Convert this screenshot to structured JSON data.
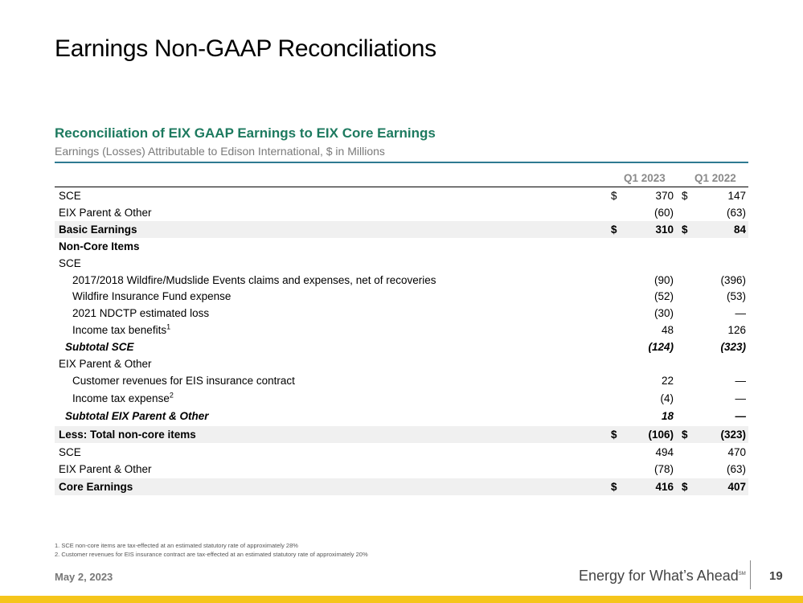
{
  "title": "Earnings Non-GAAP Reconciliations",
  "section": {
    "title": "Reconciliation of EIX GAAP Earnings to EIX Core Earnings",
    "subtitle": "Earnings (Losses) Attributable to Edison International, $ in Millions"
  },
  "columns": [
    "Q1 2023",
    "Q1 2022"
  ],
  "rows": [
    {
      "label": "SCE",
      "d1": "$",
      "v1": "370",
      "d2": "$",
      "v2": "147"
    },
    {
      "label": "EIX Parent & Other",
      "d1": "",
      "v1": "(60)",
      "d2": "",
      "v2": "(63)"
    },
    {
      "label": "Basic Earnings",
      "d1": "$",
      "v1": "310",
      "d2": "$",
      "v2": "84"
    },
    {
      "label": "Non-Core Items",
      "d1": "",
      "v1": "",
      "d2": "",
      "v2": ""
    },
    {
      "label": "SCE",
      "d1": "",
      "v1": "",
      "d2": "",
      "v2": ""
    },
    {
      "label": "2017/2018 Wildfire/Mudslide Events claims and expenses, net of recoveries",
      "d1": "",
      "v1": "(90)",
      "d2": "",
      "v2": "(396)"
    },
    {
      "label": "Wildfire Insurance Fund expense",
      "d1": "",
      "v1": "(52)",
      "d2": "",
      "v2": "(53)"
    },
    {
      "label": "2021 NDCTP estimated loss",
      "d1": "",
      "v1": "(30)",
      "d2": "",
      "v2": "—"
    },
    {
      "label": "Income tax benefits",
      "sup": "1",
      "d1": "",
      "v1": "48",
      "d2": "",
      "v2": "126"
    },
    {
      "label": "Subtotal SCE",
      "d1": "",
      "v1": "(124)",
      "d2": "",
      "v2": "(323)"
    },
    {
      "label": "EIX Parent & Other",
      "d1": "",
      "v1": "",
      "d2": "",
      "v2": ""
    },
    {
      "label": "Customer revenues for EIS insurance contract",
      "d1": "",
      "v1": "22",
      "d2": "",
      "v2": "—"
    },
    {
      "label": "Income tax expense",
      "sup": "2",
      "d1": "",
      "v1": "(4)",
      "d2": "",
      "v2": "—"
    },
    {
      "label": "Subtotal EIX Parent & Other",
      "d1": "",
      "v1": "18",
      "d2": "",
      "v2": "—"
    },
    {
      "label": "Less: Total non-core items",
      "d1": "$",
      "v1": "(106)",
      "d2": "$",
      "v2": "(323)"
    },
    {
      "label": "SCE",
      "d1": "",
      "v1": "494",
      "d2": "",
      "v2": "470"
    },
    {
      "label": "EIX Parent & Other",
      "d1": "",
      "v1": "(78)",
      "d2": "",
      "v2": "(63)"
    },
    {
      "label": "Core Earnings",
      "d1": "$",
      "v1": "416",
      "d2": "$",
      "v2": "407"
    }
  ],
  "footnotes": [
    "1.  SCE non-core items are tax-effected at an estimated statutory rate of approximately 28%",
    "2.  Customer revenues for EIS insurance contract are tax-effected at an estimated statutory rate of approximately 20%"
  ],
  "footer": {
    "date": "May 2, 2023",
    "tagline": "Energy for What’s Ahead",
    "tagline_mark": "SM",
    "page": "19"
  },
  "colors": {
    "heading": "#1d7a5f",
    "rule": "#2e7a92",
    "accent_bar": "#f5c51c"
  }
}
